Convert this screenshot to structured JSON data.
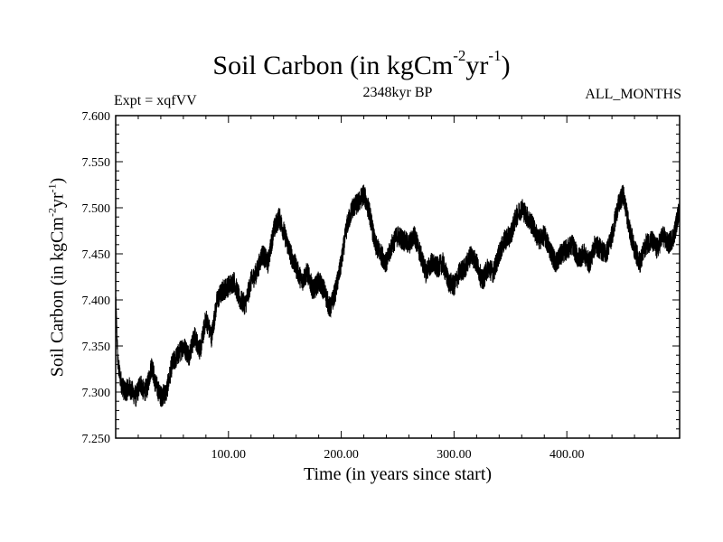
{
  "chart_data": {
    "type": "line",
    "title": {
      "main": "Soil Carbon (in kgCm",
      "sup1": "-2",
      "mid": "yr",
      "sup2": "-1",
      "end": ")"
    },
    "subtitle_left": "Expt = xqfVV",
    "subtitle_center": "2348kyr BP",
    "subtitle_right": "ALL_MONTHS",
    "xlabel": "Time (in years since start)",
    "ylabel": {
      "main": "Soil Carbon (in kgCm",
      "sup1": "-2",
      "mid": "yr",
      "sup2": "-1",
      "end": ")"
    },
    "xlim": [
      0,
      500
    ],
    "ylim": [
      7.25,
      7.6
    ],
    "xticks": [
      {
        "value": 100,
        "label": "100.00"
      },
      {
        "value": 200,
        "label": "200.00"
      },
      {
        "value": 300,
        "label": "300.00"
      },
      {
        "value": 400,
        "label": "400.00"
      }
    ],
    "yticks": [
      {
        "value": 7.25,
        "label": "7.250"
      },
      {
        "value": 7.3,
        "label": "7.300"
      },
      {
        "value": 7.35,
        "label": "7.350"
      },
      {
        "value": 7.4,
        "label": "7.400"
      },
      {
        "value": 7.45,
        "label": "7.450"
      },
      {
        "value": 7.5,
        "label": "7.500"
      },
      {
        "value": 7.55,
        "label": "7.550"
      },
      {
        "value": 7.6,
        "label": "7.600"
      }
    ],
    "series": [
      {
        "name": "Soil Carbon",
        "color": "#000000",
        "x": [
          0,
          2,
          5,
          8,
          12,
          15,
          18,
          22,
          25,
          28,
          32,
          35,
          40,
          45,
          50,
          55,
          60,
          65,
          70,
          75,
          80,
          85,
          90,
          95,
          100,
          105,
          110,
          115,
          120,
          125,
          130,
          135,
          140,
          145,
          150,
          155,
          160,
          165,
          170,
          175,
          180,
          185,
          190,
          195,
          200,
          205,
          210,
          215,
          220,
          225,
          230,
          235,
          240,
          245,
          250,
          255,
          260,
          265,
          270,
          275,
          280,
          285,
          290,
          295,
          300,
          305,
          310,
          315,
          320,
          325,
          330,
          335,
          340,
          345,
          350,
          355,
          360,
          365,
          370,
          375,
          380,
          385,
          390,
          395,
          400,
          405,
          410,
          415,
          420,
          425,
          430,
          435,
          440,
          445,
          450,
          455,
          460,
          465,
          470,
          475,
          480,
          485,
          490,
          495,
          500
        ],
        "values": [
          7.4,
          7.33,
          7.31,
          7.3,
          7.305,
          7.3,
          7.295,
          7.31,
          7.3,
          7.305,
          7.33,
          7.31,
          7.295,
          7.3,
          7.33,
          7.34,
          7.35,
          7.34,
          7.36,
          7.345,
          7.38,
          7.36,
          7.4,
          7.41,
          7.415,
          7.42,
          7.4,
          7.395,
          7.42,
          7.43,
          7.45,
          7.44,
          7.475,
          7.49,
          7.47,
          7.45,
          7.435,
          7.42,
          7.43,
          7.41,
          7.42,
          7.41,
          7.39,
          7.41,
          7.44,
          7.48,
          7.5,
          7.505,
          7.515,
          7.495,
          7.46,
          7.45,
          7.44,
          7.46,
          7.47,
          7.465,
          7.46,
          7.47,
          7.45,
          7.43,
          7.44,
          7.435,
          7.44,
          7.42,
          7.415,
          7.43,
          7.435,
          7.45,
          7.44,
          7.42,
          7.435,
          7.43,
          7.45,
          7.465,
          7.47,
          7.49,
          7.5,
          7.49,
          7.48,
          7.465,
          7.47,
          7.455,
          7.44,
          7.45,
          7.455,
          7.46,
          7.445,
          7.45,
          7.44,
          7.46,
          7.455,
          7.45,
          7.47,
          7.5,
          7.515,
          7.48,
          7.455,
          7.44,
          7.46,
          7.465,
          7.455,
          7.47,
          7.46,
          7.47,
          7.5
        ],
        "noise_amplitude": 0.012
      }
    ]
  }
}
